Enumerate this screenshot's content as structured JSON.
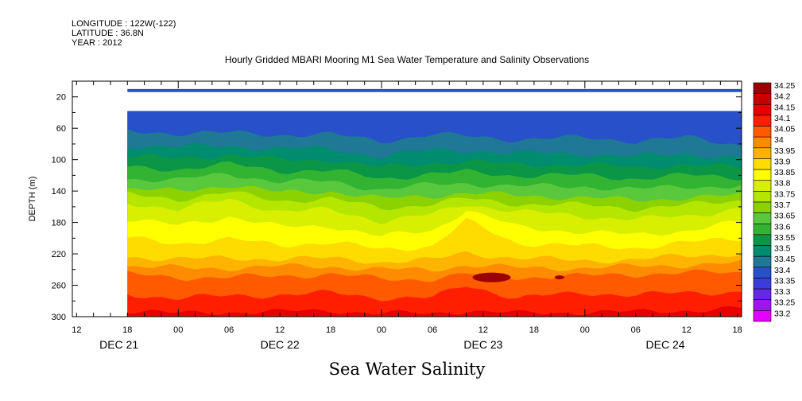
{
  "header": {
    "longitude": "LONGITUDE : 122W(-122)",
    "latitude": "LATITUDE : 36.8N",
    "year": "YEAR : 2012"
  },
  "chart_data": {
    "type": "heatmap",
    "title": "Hourly Gridded MBARI Mooring M1 Sea Water Temperature and Salinity Observations",
    "xlabel": "Sea Water Salinity",
    "ylabel": "DEPTH (m)",
    "y_range": [
      300,
      0
    ],
    "y_ticks": [
      20,
      60,
      100,
      140,
      180,
      220,
      260,
      300
    ],
    "x_range_hours": [
      -12.5,
      66.5
    ],
    "x_hour_ticks": [
      {
        "label": "12",
        "h": -12
      },
      {
        "label": "18",
        "h": -6
      },
      {
        "label": "00",
        "h": 0
      },
      {
        "label": "06",
        "h": 6
      },
      {
        "label": "12",
        "h": 12
      },
      {
        "label": "18",
        "h": 18
      },
      {
        "label": "00",
        "h": 24
      },
      {
        "label": "06",
        "h": 30
      },
      {
        "label": "12",
        "h": 36
      },
      {
        "label": "18",
        "h": 42
      },
      {
        "label": "00",
        "h": 48
      },
      {
        "label": "06",
        "h": 54
      },
      {
        "label": "12",
        "h": 60
      },
      {
        "label": "18",
        "h": 66
      }
    ],
    "x_day_labels": [
      {
        "label": "DEC 21",
        "h": -7
      },
      {
        "label": "DEC 22",
        "h": 12
      },
      {
        "label": "DEC 23",
        "h": 36
      },
      {
        "label": "DEC 24",
        "h": 57.5
      }
    ],
    "data_start_hour": -6,
    "surface_band": {
      "depth_top": 10,
      "depth_bottom": 14,
      "value": 33.4
    },
    "gap_band": {
      "depth_top": 14,
      "depth_bottom": 38
    },
    "profiles": [
      {
        "h": -6,
        "d": [
          38,
          64,
          82,
          96,
          110,
          124,
          138,
          144,
          154,
          176,
          200,
          224,
          236,
          246,
          272,
          292
        ]
      },
      {
        "h": 0,
        "d": [
          40,
          66,
          84,
          98,
          112,
          126,
          140,
          150,
          164,
          184,
          206,
          226,
          238,
          250,
          276,
          296
        ]
      },
      {
        "h": 6,
        "d": [
          42,
          66,
          82,
          94,
          106,
          118,
          132,
          142,
          150,
          172,
          202,
          226,
          238,
          250,
          274,
          294
        ]
      },
      {
        "h": 12,
        "d": [
          42,
          68,
          86,
          100,
          114,
          128,
          142,
          152,
          166,
          186,
          208,
          226,
          236,
          248,
          272,
          294
        ]
      },
      {
        "h": 18,
        "d": [
          40,
          68,
          86,
          100,
          114,
          128,
          140,
          150,
          164,
          184,
          206,
          226,
          236,
          246,
          270,
          292
        ]
      },
      {
        "h": 24,
        "d": [
          46,
          76,
          96,
          110,
          124,
          138,
          150,
          162,
          178,
          198,
          214,
          230,
          240,
          252,
          276,
          296
        ]
      },
      {
        "h": 30,
        "d": [
          42,
          68,
          88,
          104,
          118,
          132,
          146,
          156,
          170,
          190,
          210,
          228,
          240,
          252,
          276,
          296
        ]
      },
      {
        "h": 34,
        "d": [
          42,
          70,
          88,
          102,
          116,
          130,
          142,
          150,
          156,
          164,
          178,
          218,
          234,
          246,
          260,
          292
        ]
      },
      {
        "h": 40,
        "d": [
          46,
          74,
          92,
          106,
          120,
          134,
          146,
          156,
          166,
          186,
          206,
          226,
          238,
          250,
          276,
          296
        ]
      },
      {
        "h": 48,
        "d": [
          44,
          72,
          92,
          106,
          120,
          134,
          148,
          158,
          172,
          192,
          210,
          228,
          238,
          248,
          270,
          294
        ]
      },
      {
        "h": 54,
        "d": [
          46,
          76,
          96,
          110,
          124,
          138,
          152,
          162,
          176,
          196,
          212,
          228,
          236,
          246,
          272,
          294
        ]
      },
      {
        "h": 60,
        "d": [
          44,
          72,
          92,
          106,
          120,
          134,
          148,
          158,
          172,
          190,
          206,
          222,
          234,
          244,
          270,
          292
        ]
      },
      {
        "h": 66,
        "d": [
          48,
          80,
          98,
          110,
          122,
          134,
          146,
          152,
          162,
          180,
          200,
          220,
          232,
          244,
          268,
          290
        ]
      }
    ],
    "colorbar": {
      "levels": [
        "34.25",
        "34.2",
        "34.15",
        "34.1",
        "34.05",
        "34",
        "33.95",
        "33.9",
        "33.85",
        "33.8",
        "33.75",
        "33.7",
        "33.65",
        "33.6",
        "33.55",
        "33.5",
        "33.45",
        "33.4",
        "33.35",
        "33.3",
        "33.25",
        "33.2"
      ],
      "colors": [
        "#9a0000",
        "#c80000",
        "#e60000",
        "#ff1e00",
        "#ff5a00",
        "#ff8c00",
        "#ffb400",
        "#ffdc00",
        "#ffff00",
        "#d8f000",
        "#b4e600",
        "#8cd200",
        "#5ac83c",
        "#32b432",
        "#0a9646",
        "#008c6e",
        "#1e7896",
        "#2850c8",
        "#3c3cdc",
        "#6428e6",
        "#a014f0",
        "#e600ff"
      ]
    }
  }
}
